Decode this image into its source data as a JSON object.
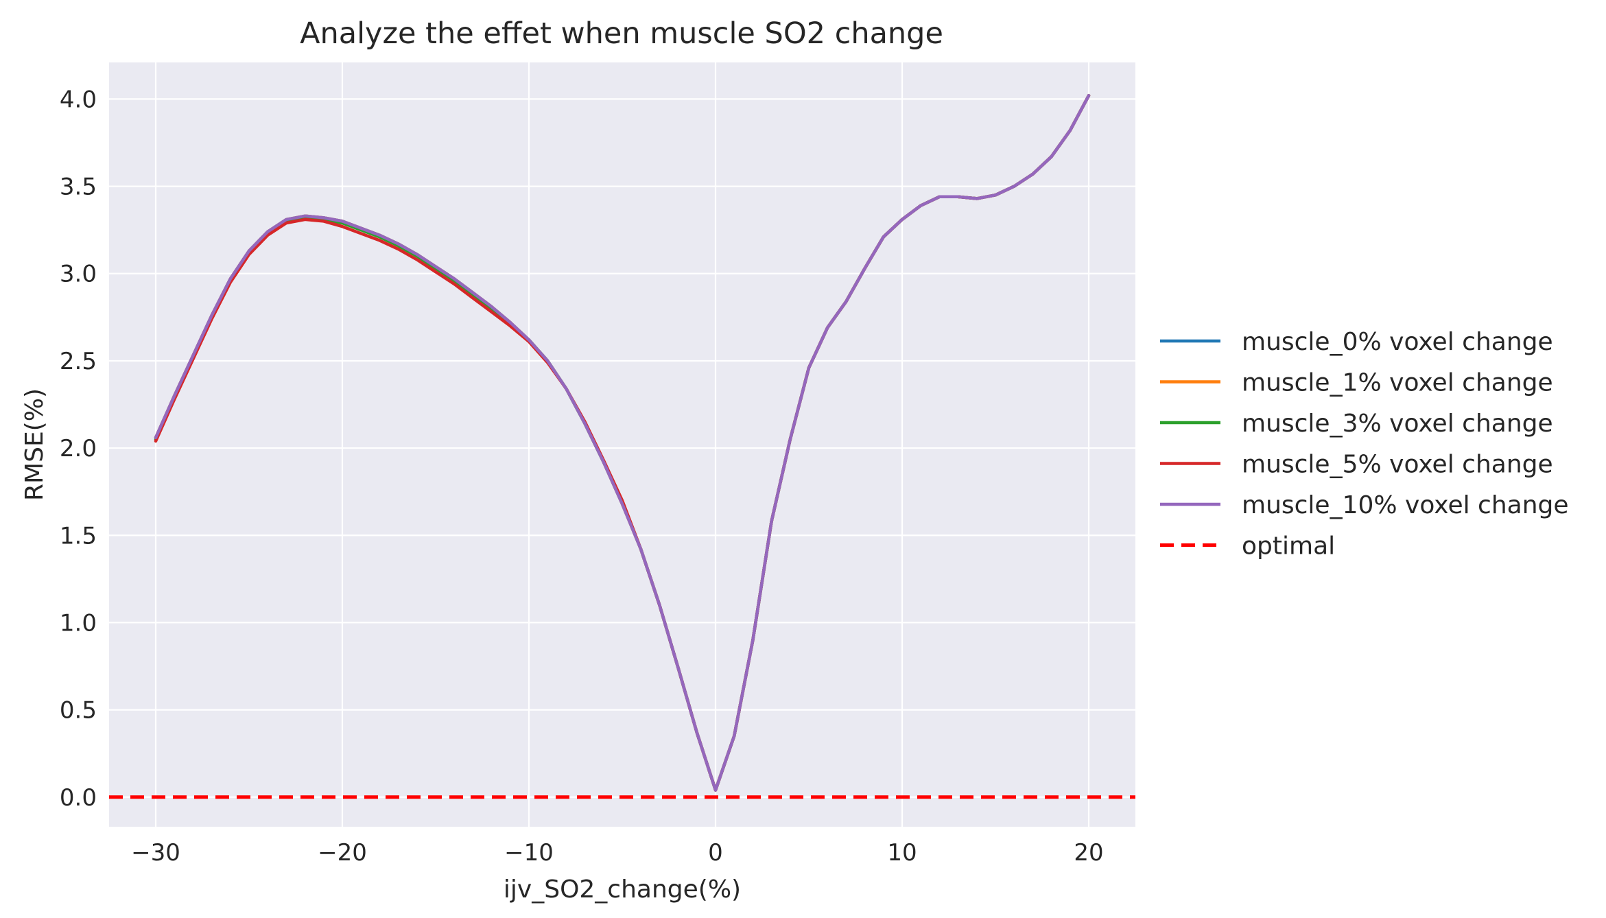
{
  "chart_data": {
    "type": "line",
    "title": "Analyze the effet when muscle SO2 change",
    "xlabel": "ijv_SO2_change(%)",
    "ylabel": "RMSE(%)",
    "xlim": [
      -32.5,
      22.5
    ],
    "ylim": [
      -0.17,
      4.21
    ],
    "xticks": [
      -30,
      -20,
      -10,
      0,
      10,
      20
    ],
    "xtick_labels": [
      "−30",
      "−20",
      "−10",
      "0",
      "10",
      "20"
    ],
    "yticks": [
      0.0,
      0.5,
      1.0,
      1.5,
      2.0,
      2.5,
      3.0,
      3.5,
      4.0
    ],
    "ytick_labels": [
      "0.0",
      "0.5",
      "1.0",
      "1.5",
      "2.0",
      "2.5",
      "3.0",
      "3.5",
      "4.0"
    ],
    "grid": true,
    "background": "#eaeaf2",
    "legend_position": "outside-right",
    "x": [
      -30,
      -29,
      -28,
      -27,
      -26,
      -25,
      -24,
      -23,
      -22,
      -21,
      -20,
      -19,
      -18,
      -17,
      -16,
      -15,
      -14,
      -13,
      -12,
      -11,
      -10,
      -9,
      -8,
      -7,
      -6,
      -5,
      -4,
      -3,
      -2,
      -1,
      0,
      1,
      2,
      3,
      4,
      5,
      6,
      7,
      8,
      9,
      10,
      11,
      12,
      13,
      14,
      15,
      16,
      17,
      18,
      19,
      20
    ],
    "series": [
      {
        "name": "muscle_0% voxel change",
        "color": "#1f77b4",
        "dash": "solid",
        "values": [
          2.06,
          2.3,
          2.53,
          2.76,
          2.97,
          3.13,
          3.24,
          3.31,
          3.33,
          3.32,
          3.3,
          3.26,
          3.22,
          3.17,
          3.11,
          3.04,
          2.97,
          2.89,
          2.81,
          2.72,
          2.62,
          2.5,
          2.34,
          2.14,
          1.92,
          1.68,
          1.42,
          1.1,
          0.74,
          0.37,
          0.04,
          0.35,
          0.9,
          1.58,
          2.05,
          2.46,
          2.69,
          2.84,
          3.03,
          3.21,
          3.31,
          3.39,
          3.44,
          3.44,
          3.43,
          3.45,
          3.5,
          3.57,
          3.67,
          3.82,
          4.02
        ]
      },
      {
        "name": "muscle_1% voxel change",
        "color": "#ff7f0e",
        "dash": "solid",
        "values": [
          2.06,
          2.3,
          2.53,
          2.76,
          2.97,
          3.13,
          3.24,
          3.31,
          3.33,
          3.32,
          3.3,
          3.26,
          3.22,
          3.17,
          3.11,
          3.04,
          2.97,
          2.89,
          2.81,
          2.72,
          2.62,
          2.5,
          2.34,
          2.14,
          1.92,
          1.68,
          1.42,
          1.1,
          0.74,
          0.37,
          0.04,
          0.35,
          0.9,
          1.58,
          2.05,
          2.46,
          2.69,
          2.84,
          3.03,
          3.21,
          3.31,
          3.39,
          3.44,
          3.44,
          3.43,
          3.45,
          3.5,
          3.57,
          3.67,
          3.82,
          4.02
        ]
      },
      {
        "name": "muscle_3% voxel change",
        "color": "#2ca02c",
        "dash": "solid",
        "values": [
          2.05,
          2.29,
          2.52,
          2.75,
          2.96,
          3.12,
          3.23,
          3.3,
          3.32,
          3.31,
          3.29,
          3.25,
          3.21,
          3.16,
          3.1,
          3.03,
          2.96,
          2.88,
          2.8,
          2.71,
          2.62,
          2.5,
          2.34,
          2.14,
          1.92,
          1.69,
          1.42,
          1.1,
          0.74,
          0.37,
          0.04,
          0.35,
          0.9,
          1.58,
          2.05,
          2.46,
          2.69,
          2.84,
          3.03,
          3.21,
          3.31,
          3.39,
          3.44,
          3.44,
          3.43,
          3.45,
          3.5,
          3.57,
          3.67,
          3.82,
          4.02
        ]
      },
      {
        "name": "muscle_5% voxel change",
        "color": "#d62728",
        "dash": "solid",
        "values": [
          2.04,
          2.28,
          2.51,
          2.74,
          2.95,
          3.11,
          3.22,
          3.29,
          3.31,
          3.3,
          3.27,
          3.23,
          3.19,
          3.14,
          3.08,
          3.01,
          2.94,
          2.86,
          2.78,
          2.7,
          2.61,
          2.49,
          2.34,
          2.15,
          1.93,
          1.7,
          1.42,
          1.1,
          0.74,
          0.37,
          0.04,
          0.35,
          0.9,
          1.58,
          2.05,
          2.46,
          2.69,
          2.84,
          3.03,
          3.21,
          3.31,
          3.39,
          3.44,
          3.44,
          3.43,
          3.45,
          3.5,
          3.57,
          3.67,
          3.82,
          4.02
        ]
      },
      {
        "name": "muscle_10% voxel change",
        "color": "#9467bd",
        "dash": "solid",
        "values": [
          2.06,
          2.3,
          2.53,
          2.76,
          2.97,
          3.13,
          3.24,
          3.31,
          3.33,
          3.32,
          3.3,
          3.26,
          3.22,
          3.17,
          3.11,
          3.04,
          2.97,
          2.89,
          2.81,
          2.72,
          2.62,
          2.5,
          2.34,
          2.14,
          1.92,
          1.68,
          1.42,
          1.1,
          0.74,
          0.37,
          0.04,
          0.35,
          0.9,
          1.58,
          2.05,
          2.46,
          2.69,
          2.84,
          3.03,
          3.21,
          3.31,
          3.39,
          3.44,
          3.44,
          3.43,
          3.45,
          3.5,
          3.57,
          3.67,
          3.82,
          4.02
        ]
      },
      {
        "name": "optimal",
        "color": "#ff0000",
        "dash": "dashed",
        "constant": 0.0
      }
    ]
  }
}
